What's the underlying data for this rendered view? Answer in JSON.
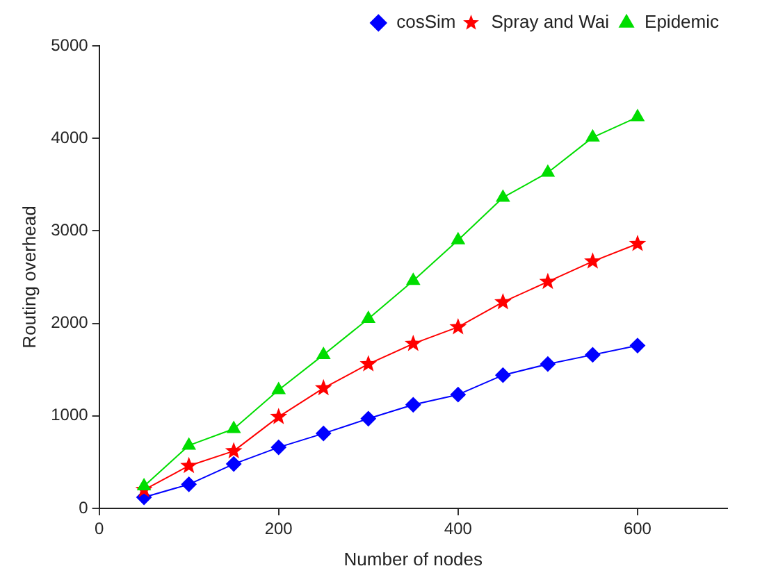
{
  "chart_data": {
    "type": "line",
    "xlabel": "Number of nodes",
    "ylabel": "Routing overhead",
    "x": [
      50,
      100,
      150,
      200,
      250,
      300,
      350,
      400,
      450,
      500,
      550,
      600
    ],
    "series": [
      {
        "name": "cosSim",
        "color": "#0000ff",
        "marker": "diamond",
        "values": [
          120,
          260,
          480,
          660,
          810,
          970,
          1120,
          1230,
          1440,
          1560,
          1660,
          1760
        ]
      },
      {
        "name": "Spray and Wai",
        "color": "#ff0000",
        "marker": "star",
        "values": [
          200,
          460,
          620,
          990,
          1300,
          1560,
          1780,
          1960,
          2230,
          2450,
          2670,
          2860
        ]
      },
      {
        "name": "Epidemic",
        "color": "#00dd00",
        "marker": "triangle",
        "values": [
          240,
          680,
          860,
          1280,
          1660,
          2050,
          2460,
          2900,
          3360,
          3630,
          4010,
          4230
        ]
      }
    ],
    "xlim": [
      0,
      700
    ],
    "xticks": [
      0,
      200,
      400,
      600
    ],
    "ylim": [
      0,
      5000
    ],
    "yticks": [
      0,
      1000,
      2000,
      3000,
      4000,
      5000
    ],
    "grid": false,
    "legend": "top right",
    "line_style": "solid"
  }
}
